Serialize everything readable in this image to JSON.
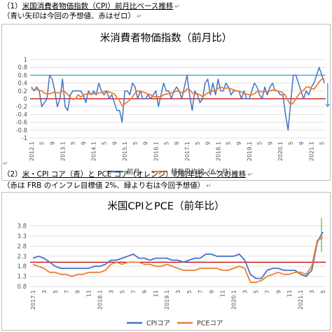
{
  "section1": {
    "heading_num": "（1）",
    "heading": "米国消費者物価指数（CPI）前月比ベース推移",
    "note": "（青い矢印は今回の予想値、赤はゼロ）"
  },
  "section2": {
    "heading_num": "（2）",
    "heading": "米・CPI コア（青）と PCE コア（オレンジ）の前年比ベースの推移",
    "note": "（赤は FRB のインフレ目標値 2%、緑より右は今回予想値）"
  },
  "colors": {
    "blue": "#4472c4",
    "orange": "#ed7d31",
    "red": "#c00000",
    "teal": "#2aa8c8",
    "green": "#70ad47",
    "grid": "#d9d9d9"
  },
  "chart_data": [
    {
      "type": "line",
      "title": "米消費者物価指数（前月比）",
      "ylim": [
        -1.0,
        1.0
      ],
      "yticks": [
        "1",
        "0.8",
        "0.6",
        "0.4",
        "0.2",
        "0",
        "-0.2",
        "-0.4",
        "-0.6",
        "-0.8",
        "-1"
      ],
      "ytick_values": [
        1,
        0.8,
        0.6,
        0.4,
        0.2,
        0,
        -0.2,
        -0.4,
        -0.6,
        -0.8,
        -1
      ],
      "xtick_labels": [
        "2012.1",
        "5",
        "9",
        "2013.1",
        "5",
        "9",
        "2014.1",
        "5",
        "9",
        "2015.1",
        "5",
        "9",
        "2016.1",
        "5",
        "9",
        "2017.1",
        "5",
        "9",
        "2018.1",
        "5",
        "9",
        "2019.1",
        "5",
        "9",
        "2020.1",
        "5",
        "9",
        "2021.1",
        "5"
      ],
      "zero_line": 0,
      "reference_line": 0.6,
      "forecast_arrow": {
        "from": 0.4,
        "to": -0.2
      },
      "legend_position": "bottom",
      "series": [
        {
          "name": "前月",
          "values": [
            0.3,
            0.2,
            0.3,
            0.2,
            -0.2,
            -0.1,
            0.0,
            0.6,
            0.5,
            0.2,
            -0.2,
            0.0,
            0.5,
            -0.2,
            -0.3,
            0.1,
            0.2,
            0.2,
            0.2,
            0.2,
            0.1,
            -0.1,
            0.2,
            0.1,
            0.2,
            0.1,
            0.4,
            0.2,
            0.1,
            0.2,
            0.0,
            0.1,
            -0.1,
            -0.3,
            -0.3,
            -0.6,
            0.2,
            0.2,
            0.1,
            0.4,
            0.3,
            0.0,
            0.2,
            0.0,
            0.0,
            0.1,
            0.0,
            0.1,
            0.2,
            -0.2,
            0.1,
            0.4,
            0.2,
            0.2,
            0.0,
            0.2,
            0.3,
            0.2,
            0.0,
            0.3,
            0.6,
            0.1,
            -0.3,
            0.2,
            0.1,
            -0.1,
            0.0,
            0.4,
            0.5,
            0.1,
            0.4,
            0.1,
            0.5,
            0.2,
            0.2,
            0.4,
            0.3,
            0.1,
            0.2,
            0.2,
            0.2,
            0.0,
            0.2,
            0.0,
            0.0,
            0.2,
            0.4,
            0.3,
            0.1,
            0.0,
            0.3,
            0.1,
            0.3,
            0.4,
            0.2,
            0.2,
            0.1,
            0.1,
            -0.4,
            -0.8,
            -0.1,
            0.6,
            0.6,
            0.4,
            0.2,
            0.0,
            0.2,
            0.1,
            0.3,
            0.4,
            0.6,
            0.8,
            0.6,
            0.4
          ]
        },
        {
          "name": "移動平均線（6ヶ月）",
          "values": [
            0.25,
            0.23,
            0.24,
            0.22,
            0.2,
            0.15,
            0.12,
            0.13,
            0.15,
            0.17,
            0.15,
            0.15,
            0.2,
            0.17,
            0.12,
            0.03,
            -0.02,
            0.0,
            0.1,
            0.05,
            0.08,
            0.12,
            0.13,
            0.12,
            0.13,
            0.12,
            0.15,
            0.15,
            0.18,
            0.2,
            0.17,
            0.15,
            0.12,
            0.03,
            -0.05,
            -0.18,
            -0.13,
            -0.08,
            -0.03,
            0.05,
            0.15,
            0.2,
            0.2,
            0.17,
            0.15,
            0.12,
            0.1,
            0.05,
            0.05,
            0.05,
            0.05,
            0.1,
            0.12,
            0.13,
            0.15,
            0.17,
            0.2,
            0.18,
            0.15,
            0.17,
            0.25,
            0.23,
            0.15,
            0.12,
            0.13,
            0.1,
            0.05,
            0.1,
            0.15,
            0.17,
            0.2,
            0.2,
            0.27,
            0.3,
            0.27,
            0.27,
            0.28,
            0.25,
            0.23,
            0.2,
            0.2,
            0.17,
            0.13,
            0.12,
            0.1,
            0.1,
            0.13,
            0.18,
            0.2,
            0.17,
            0.18,
            0.18,
            0.2,
            0.22,
            0.22,
            0.2,
            0.18,
            0.15,
            0.08,
            -0.05,
            -0.15,
            -0.1,
            0.0,
            0.1,
            0.18,
            0.22,
            0.3,
            0.3,
            0.25,
            0.25,
            0.33,
            0.43,
            0.5,
            0.5
          ]
        }
      ]
    },
    {
      "type": "line",
      "title": "米国CPIとPCE（前年比）",
      "ylim": [
        0.8,
        4.2
      ],
      "yticks": [
        "3.8",
        "3.3",
        "2.8",
        "2.3",
        "1.8",
        "1.3",
        "0.8"
      ],
      "ytick_values": [
        3.8,
        3.3,
        2.8,
        2.3,
        1.8,
        1.3,
        0.8
      ],
      "xtick_labels": [
        "2017.1",
        "3",
        "5",
        "7",
        "9",
        "11",
        "2018.1",
        "3",
        "5",
        "7",
        "9",
        "11",
        "2019.1",
        "3",
        "5",
        "7",
        "9",
        "11",
        "2020.1",
        "3",
        "5",
        "7",
        "9",
        "11",
        "2021.1",
        "3",
        "5"
      ],
      "target_line": 2.0,
      "forecast_marker_x": 52,
      "legend_position": "bottom",
      "series": [
        {
          "name": "CPIコア",
          "values": [
            2.2,
            2.3,
            2.2,
            2.0,
            1.8,
            1.7,
            1.7,
            1.7,
            1.7,
            1.7,
            1.7,
            1.8,
            1.8,
            1.9,
            2.1,
            2.1,
            2.2,
            2.3,
            2.4,
            2.2,
            2.2,
            2.1,
            2.2,
            2.2,
            2.2,
            2.1,
            2.1,
            2.0,
            2.1,
            2.2,
            2.2,
            2.4,
            2.4,
            2.3,
            2.3,
            2.3,
            2.3,
            2.4,
            2.1,
            1.4,
            1.2,
            1.2,
            1.6,
            1.7,
            1.7,
            1.6,
            1.6,
            1.6,
            1.4,
            1.3,
            1.6,
            3.0,
            3.5
          ]
        },
        {
          "name": "PCEコア",
          "values": [
            1.9,
            1.8,
            1.7,
            1.5,
            1.5,
            1.4,
            1.4,
            1.3,
            1.4,
            1.4,
            1.5,
            1.5,
            1.5,
            1.6,
            1.9,
            2.0,
            1.9,
            2.0,
            2.0,
            2.0,
            1.9,
            1.9,
            1.8,
            1.8,
            1.9,
            1.8,
            1.7,
            1.6,
            1.6,
            1.6,
            1.7,
            1.7,
            1.7,
            1.7,
            1.6,
            1.6,
            1.7,
            1.8,
            1.7,
            1.0,
            1.0,
            1.1,
            1.3,
            1.4,
            1.5,
            1.4,
            1.4,
            1.5,
            1.5,
            1.4,
            1.8,
            3.1,
            3.2
          ]
        }
      ]
    }
  ]
}
